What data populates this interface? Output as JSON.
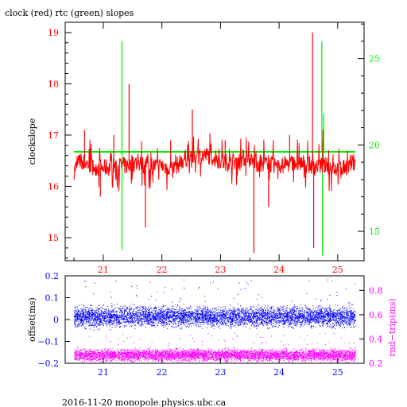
{
  "title": "clock (red) rtc (green) slopes",
  "footer": "2016-11-20  monopole.physics.ubc.ca",
  "colors": {
    "red": "#ff0000",
    "green": "#00ee00",
    "blue": "#0000ff",
    "magenta": "#ff00ff",
    "frame": "#000000"
  },
  "chart_data": [
    {
      "type": "line",
      "ylabel": "clockslope",
      "ylabel_right": "",
      "xlim": [
        20.35,
        25.45
      ],
      "ylim": [
        14.55,
        19.2
      ],
      "y2lim": [
        13.3,
        27.1
      ],
      "x_ticks": [
        "21",
        "22",
        "23",
        "24",
        "25"
      ],
      "y_ticks": [
        "15",
        "16",
        "17",
        "18",
        "19"
      ],
      "y2_ticks": [
        "15",
        "20",
        "25"
      ],
      "grid": false,
      "series": [
        {
          "name": "clock",
          "color": "red",
          "axis": "left",
          "baseline": 16.4,
          "noise_range": [
            15.9,
            16.9
          ],
          "x": [
            20.5,
            20.6,
            20.8,
            21.0,
            21.2,
            21.4,
            21.6,
            21.8,
            22.0,
            22.2,
            22.4,
            22.6,
            22.8,
            23.0,
            23.2,
            23.4,
            23.6,
            23.8,
            24.0,
            24.2,
            24.4,
            24.6,
            24.8,
            25.0,
            25.2,
            25.3
          ],
          "values": [
            16.3,
            16.5,
            16.4,
            16.35,
            16.4,
            16.4,
            16.45,
            16.4,
            16.4,
            16.35,
            16.55,
            16.6,
            16.6,
            16.5,
            16.45,
            16.55,
            16.45,
            16.45,
            16.4,
            16.45,
            16.45,
            16.4,
            16.4,
            16.35,
            16.4,
            16.5
          ],
          "spikes": [
            {
              "x": 20.68,
              "y": 17.1
            },
            {
              "x": 20.95,
              "y": 15.8
            },
            {
              "x": 21.18,
              "y": 17.0
            },
            {
              "x": 21.44,
              "y": 18.0
            },
            {
              "x": 21.72,
              "y": 15.2
            },
            {
              "x": 22.15,
              "y": 16.9
            },
            {
              "x": 22.52,
              "y": 17.5
            },
            {
              "x": 23.08,
              "y": 16.9
            },
            {
              "x": 23.57,
              "y": 14.7
            },
            {
              "x": 23.82,
              "y": 15.6
            },
            {
              "x": 24.18,
              "y": 17.0
            },
            {
              "x": 24.57,
              "y": 19.0
            },
            {
              "x": 24.59,
              "y": 14.8
            },
            {
              "x": 24.75,
              "y": 17.1
            }
          ]
        },
        {
          "name": "rtc",
          "color": "green",
          "axis": "right",
          "baseline": 19.6,
          "x": [
            20.5,
            25.3
          ],
          "values": [
            19.6,
            19.6
          ],
          "spikes": [
            {
              "x": 21.32,
              "y": 26.0
            },
            {
              "x": 21.32,
              "y": 13.9
            },
            {
              "x": 24.73,
              "y": 26.0
            },
            {
              "x": 24.74,
              "y": 13.6
            },
            {
              "x": 24.76,
              "y": 21.8
            }
          ]
        }
      ]
    },
    {
      "type": "scatter",
      "ylabel": "offset(ms)",
      "ylabel_right": "rnd−trip(ms)",
      "xlim": [
        20.35,
        25.45
      ],
      "ylim": [
        -0.2,
        0.2
      ],
      "y2lim": [
        0.2,
        0.92
      ],
      "x_ticks": [
        "21",
        "22",
        "23",
        "24",
        "25"
      ],
      "y_ticks": [
        "0.2",
        "0.1",
        "0",
        "−0.1",
        "−0.2"
      ],
      "y2_ticks": [
        "0.8",
        "0.6",
        "0.4",
        "0.2"
      ],
      "grid": false,
      "series": [
        {
          "name": "offset",
          "color": "blue",
          "axis": "left",
          "x_range": [
            20.5,
            25.3
          ],
          "band": [
            -0.05,
            0.08
          ],
          "center": 0.0
        },
        {
          "name": "rnd-trip",
          "color": "magenta",
          "axis": "right",
          "x_range": [
            20.5,
            25.3
          ],
          "band": [
            0.2,
            0.34
          ],
          "center": 0.27
        }
      ]
    }
  ]
}
